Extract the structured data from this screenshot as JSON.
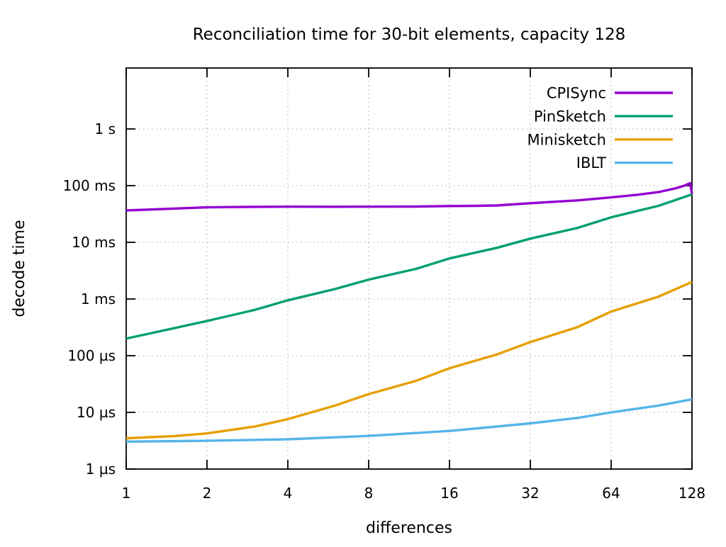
{
  "title": "Reconciliation time for 30-bit elements, capacity 128",
  "x_axis": {
    "label": "differences",
    "ticks": [
      {
        "label": "1",
        "value": 1
      },
      {
        "label": "2",
        "value": 2
      },
      {
        "label": "4",
        "value": 4
      },
      {
        "label": "8",
        "value": 8
      },
      {
        "label": "16",
        "value": 16
      },
      {
        "label": "32",
        "value": 32
      },
      {
        "label": "64",
        "value": 64
      },
      {
        "label": "128",
        "value": 128
      }
    ]
  },
  "y_axis": {
    "label": "decode time",
    "ticks": [
      {
        "label": "1 s",
        "seconds": 1
      },
      {
        "label": "100 ms",
        "seconds": 0.1
      },
      {
        "label": "10 ms",
        "seconds": 0.01
      },
      {
        "label": "1 ms",
        "seconds": 0.001
      },
      {
        "label": "100 µs",
        "seconds": 0.0001
      },
      {
        "label": "10 µs",
        "seconds": 1e-05
      },
      {
        "label": "1 µs",
        "seconds": 1e-06
      }
    ]
  },
  "chart_data": {
    "type": "line",
    "x_scale": "log2",
    "y_scale": "log10",
    "xlim": [
      1,
      128
    ],
    "ylim_seconds": [
      1e-06,
      12
    ],
    "grid": true,
    "grid_style": "dotted",
    "grid_color": "#bcbcbc",
    "legend_position": "top-right-inside",
    "series": [
      {
        "name": "CPISync",
        "color": "#9400d3",
        "points": [
          [
            1,
            0.0365
          ],
          [
            2,
            0.0415
          ],
          [
            3,
            0.0423
          ],
          [
            4,
            0.0425
          ],
          [
            6,
            0.0424
          ],
          [
            8,
            0.0425
          ],
          [
            12,
            0.0428
          ],
          [
            16,
            0.0437
          ],
          [
            20,
            0.044
          ],
          [
            24,
            0.0447
          ],
          [
            32,
            0.049
          ],
          [
            48,
            0.055
          ],
          [
            64,
            0.062
          ],
          [
            80,
            0.069
          ],
          [
            96,
            0.077
          ],
          [
            112,
            0.0905
          ],
          [
            120,
            0.1
          ],
          [
            126,
            0.111
          ],
          [
            128,
            0.0725
          ]
        ]
      },
      {
        "name": "PinSketch",
        "color": "#009e73",
        "points": [
          [
            1,
            0.0002
          ],
          [
            2,
            0.00041
          ],
          [
            3,
            0.00064
          ],
          [
            4,
            0.00095
          ],
          [
            6,
            0.0015
          ],
          [
            8,
            0.0022
          ],
          [
            12,
            0.0034
          ],
          [
            16,
            0.0052
          ],
          [
            24,
            0.008
          ],
          [
            32,
            0.0116
          ],
          [
            48,
            0.018
          ],
          [
            64,
            0.0276
          ],
          [
            96,
            0.044
          ],
          [
            128,
            0.07
          ]
        ]
      },
      {
        "name": "Minisketch",
        "color": "#e69f00",
        "points": [
          [
            1,
            3.5e-06
          ],
          [
            1.5,
            3.8e-06
          ],
          [
            2,
            4.25e-06
          ],
          [
            3,
            5.6e-06
          ],
          [
            4,
            7.6e-06
          ],
          [
            6,
            1.32e-05
          ],
          [
            8,
            2.1e-05
          ],
          [
            12,
            3.6e-05
          ],
          [
            16,
            6e-05
          ],
          [
            24,
            0.000105
          ],
          [
            32,
            0.000174
          ],
          [
            48,
            0.00032
          ],
          [
            64,
            0.0006
          ],
          [
            96,
            0.0011
          ],
          [
            128,
            0.002
          ]
        ]
      },
      {
        "name": "IBLT",
        "color": "#56b4e9",
        "points": [
          [
            1,
            3.05e-06
          ],
          [
            2,
            3.15e-06
          ],
          [
            4,
            3.35e-06
          ],
          [
            8,
            3.85e-06
          ],
          [
            16,
            4.7e-06
          ],
          [
            32,
            6.4e-06
          ],
          [
            48,
            8e-06
          ],
          [
            64,
            1e-05
          ],
          [
            96,
            1.32e-05
          ],
          [
            128,
            1.7e-05
          ]
        ]
      }
    ]
  }
}
